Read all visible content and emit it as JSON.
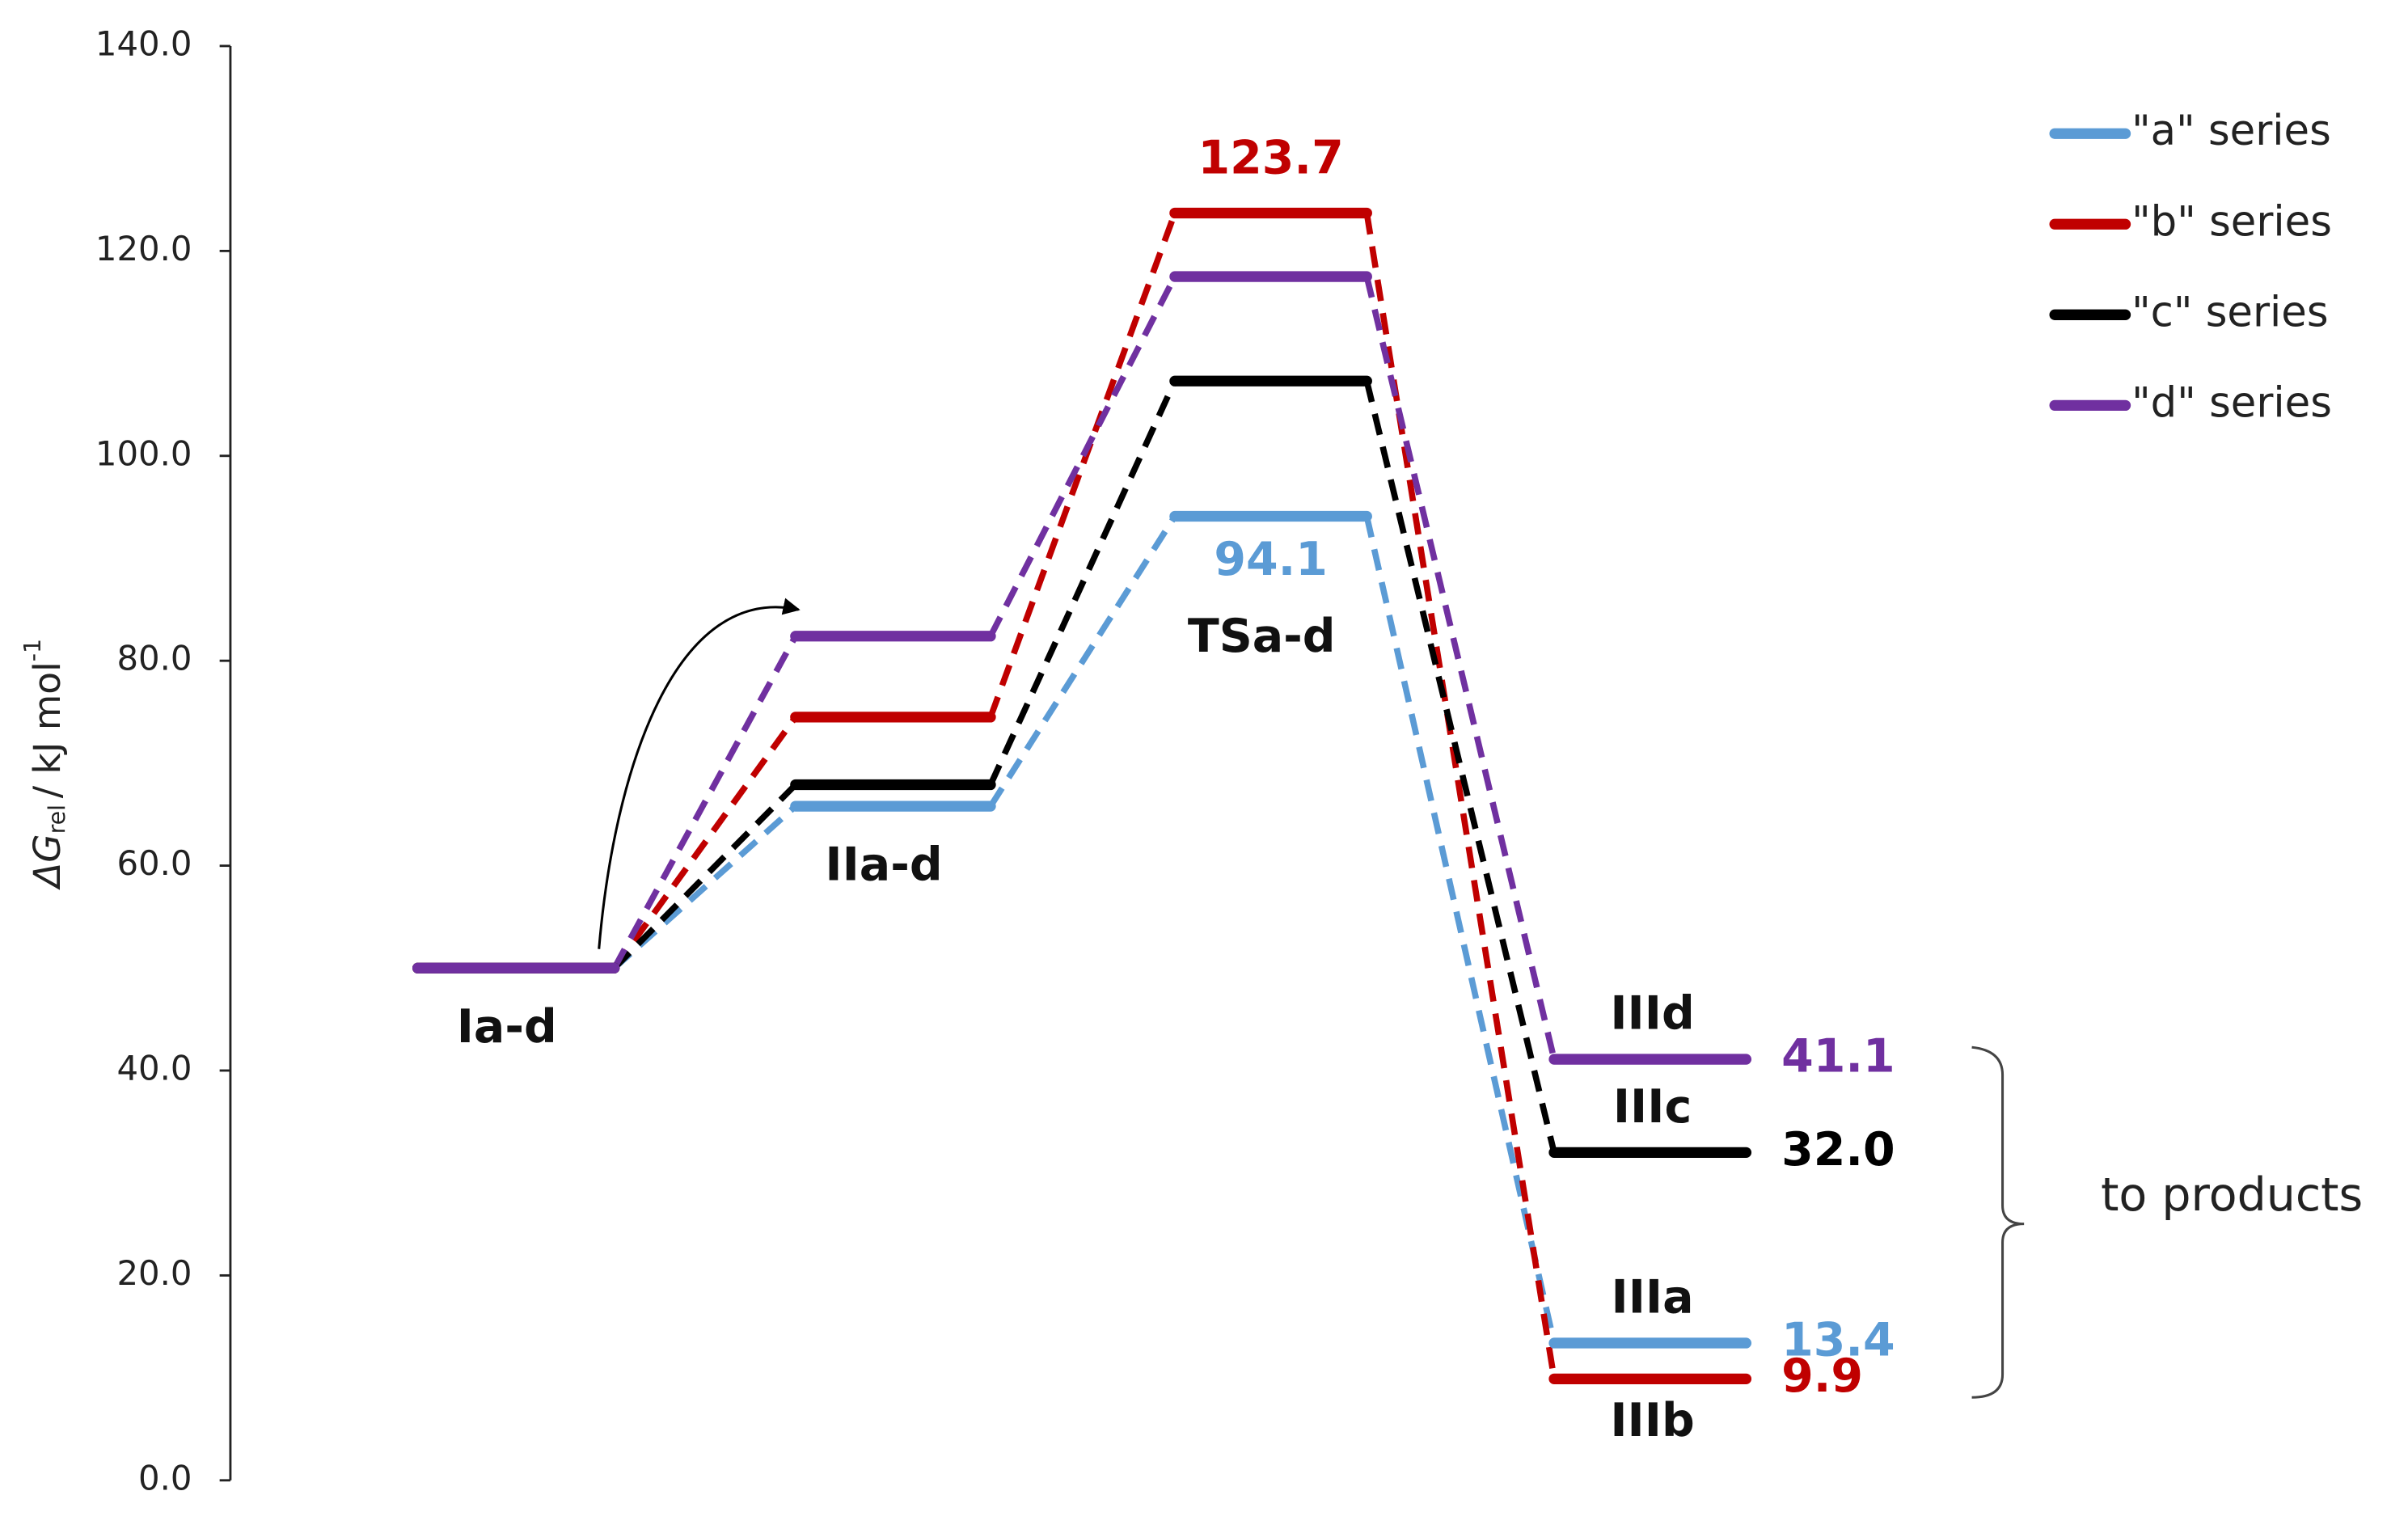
{
  "chart_data": {
    "type": "energy_profile",
    "ylabel": {
      "symbol": "ΔG",
      "subscript": "rel",
      "unit": "/ kJ mol",
      "superscript": "-1"
    },
    "categories": [
      "Ia-d",
      "IIa-d",
      "TSa-d",
      null
    ],
    "ylim": [
      0,
      140
    ],
    "yticks": [
      {
        "value": 0,
        "label": "0.0"
      },
      {
        "value": 20,
        "label": "20.0"
      },
      {
        "value": 40,
        "label": "40.0"
      },
      {
        "value": 60,
        "label": "60.0"
      },
      {
        "value": 80,
        "label": "80.0"
      },
      {
        "value": 100,
        "label": "100.0"
      },
      {
        "value": 120,
        "label": "120.0"
      },
      {
        "value": 140,
        "label": "140.0"
      }
    ],
    "series": [
      {
        "name": "\"a\" series",
        "color": "#5b9bd5",
        "label": "IIIa",
        "values": [
          50.0,
          65.8,
          94.1,
          13.4
        ],
        "value_labels": [
          null,
          null,
          "94.1",
          "13.4"
        ]
      },
      {
        "name": "\"b\" series",
        "color": "#c00000",
        "label": "IIIb",
        "values": [
          50.0,
          74.5,
          123.7,
          9.9
        ],
        "value_labels": [
          null,
          null,
          "123.7",
          "9.9"
        ]
      },
      {
        "name": "\"c\" series",
        "color": "#000000",
        "label": "IIIc",
        "values": [
          50.0,
          67.9,
          107.3,
          32.0
        ],
        "value_labels": [
          null,
          null,
          null,
          "32.0"
        ]
      },
      {
        "name": "\"d\" series",
        "color": "#7030a0",
        "label": "IIId",
        "values": [
          50.0,
          82.4,
          117.5,
          41.1
        ],
        "value_labels": [
          null,
          null,
          null,
          "41.1"
        ]
      }
    ],
    "legend": "top-right",
    "annotation": "to products"
  }
}
